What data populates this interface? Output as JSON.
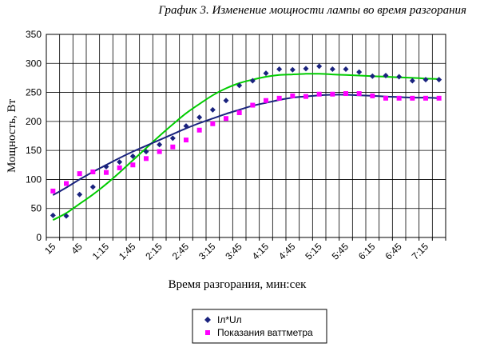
{
  "chart_data": {
    "type": "scatter",
    "title": "График 3. Изменение мощности лампы во время разгорания",
    "xlabel": "Время разгорания, мин:сек",
    "ylabel": "Мощность, Вт",
    "ylim": [
      0,
      350
    ],
    "yticks": [
      0,
      50,
      100,
      150,
      200,
      250,
      300,
      350
    ],
    "x_tick_labels": [
      "15",
      "45",
      "1:15",
      "1:45",
      "2:15",
      "2:45",
      "3:15",
      "3:45",
      "4:15",
      "4:45",
      "5:15",
      "5:45",
      "6:15",
      "6:45",
      "7:15"
    ],
    "x_seconds": [
      15,
      30,
      45,
      60,
      75,
      90,
      105,
      120,
      135,
      150,
      165,
      180,
      195,
      210,
      225,
      240,
      255,
      270,
      285,
      300,
      315,
      330,
      345,
      360,
      375,
      390,
      405,
      420,
      435,
      450
    ],
    "grid": true,
    "legend_position": "bottom",
    "series": [
      {
        "name": "Iл*Uл",
        "marker": "diamond",
        "color": "#1a237e",
        "values": [
          38,
          37,
          74,
          87,
          122,
          130,
          140,
          148,
          160,
          171,
          192,
          207,
          220,
          236,
          262,
          270,
          283,
          290,
          289,
          291,
          295,
          290,
          290,
          285,
          278,
          279,
          277,
          270,
          272,
          272
        ]
      },
      {
        "name": "Показания ваттметра",
        "marker": "square",
        "color": "#ff00ff",
        "values": [
          80,
          93,
          110,
          113,
          112,
          120,
          125,
          136,
          148,
          156,
          168,
          185,
          196,
          205,
          215,
          228,
          236,
          240,
          244,
          243,
          247,
          247,
          248,
          248,
          244,
          240,
          240,
          240,
          240,
          240
        ]
      }
    ],
    "trendlines": [
      {
        "series": "Iл*Uл",
        "color": "#00cc00",
        "values": [
          30,
          42,
          58,
          74,
          92,
          112,
          133,
          154,
          175,
          195,
          214,
          230,
          245,
          257,
          266,
          272,
          277,
          280,
          281,
          282,
          282,
          281,
          280,
          279,
          278,
          277,
          276,
          275,
          274,
          273
        ]
      },
      {
        "series": "Показания ваттметра",
        "color": "#1a237e",
        "values": [
          73,
          86,
          100,
          113,
          125,
          137,
          148,
          158,
          168,
          178,
          188,
          197,
          205,
          213,
          220,
          227,
          232,
          237,
          241,
          243,
          245,
          246,
          246,
          245,
          244,
          243,
          242,
          241,
          241,
          240
        ]
      }
    ]
  }
}
